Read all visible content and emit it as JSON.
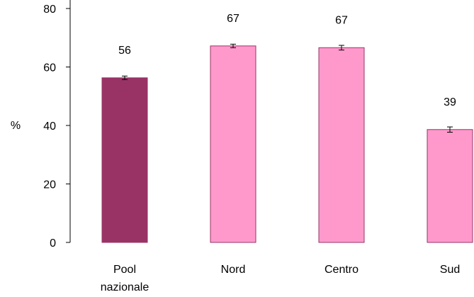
{
  "chart_data": {
    "type": "bar",
    "title": "",
    "xlabel": "",
    "ylabel": "%",
    "ylim": [
      0,
      80
    ],
    "yticks": [
      0,
      20,
      40,
      60,
      80
    ],
    "grid": false,
    "legend": "none",
    "categories": [
      {
        "name": "Pool nazionale",
        "lines": [
          "Pool",
          "nazionale"
        ]
      },
      {
        "name": "Nord",
        "lines": [
          "Nord"
        ]
      },
      {
        "name": "Centro",
        "lines": [
          "Centro"
        ]
      },
      {
        "name": "Sud",
        "lines": [
          "Sud"
        ]
      }
    ],
    "values": [
      56.3,
      67.2,
      66.6,
      38.6
    ],
    "error": [
      0.6,
      0.6,
      0.8,
      0.9
    ],
    "data_labels": [
      "56",
      "67",
      "67",
      "39"
    ],
    "colors": [
      "#993366",
      "#ff99cc",
      "#ff99cc",
      "#ff99cc"
    ],
    "bar_border_color": "#993366"
  }
}
